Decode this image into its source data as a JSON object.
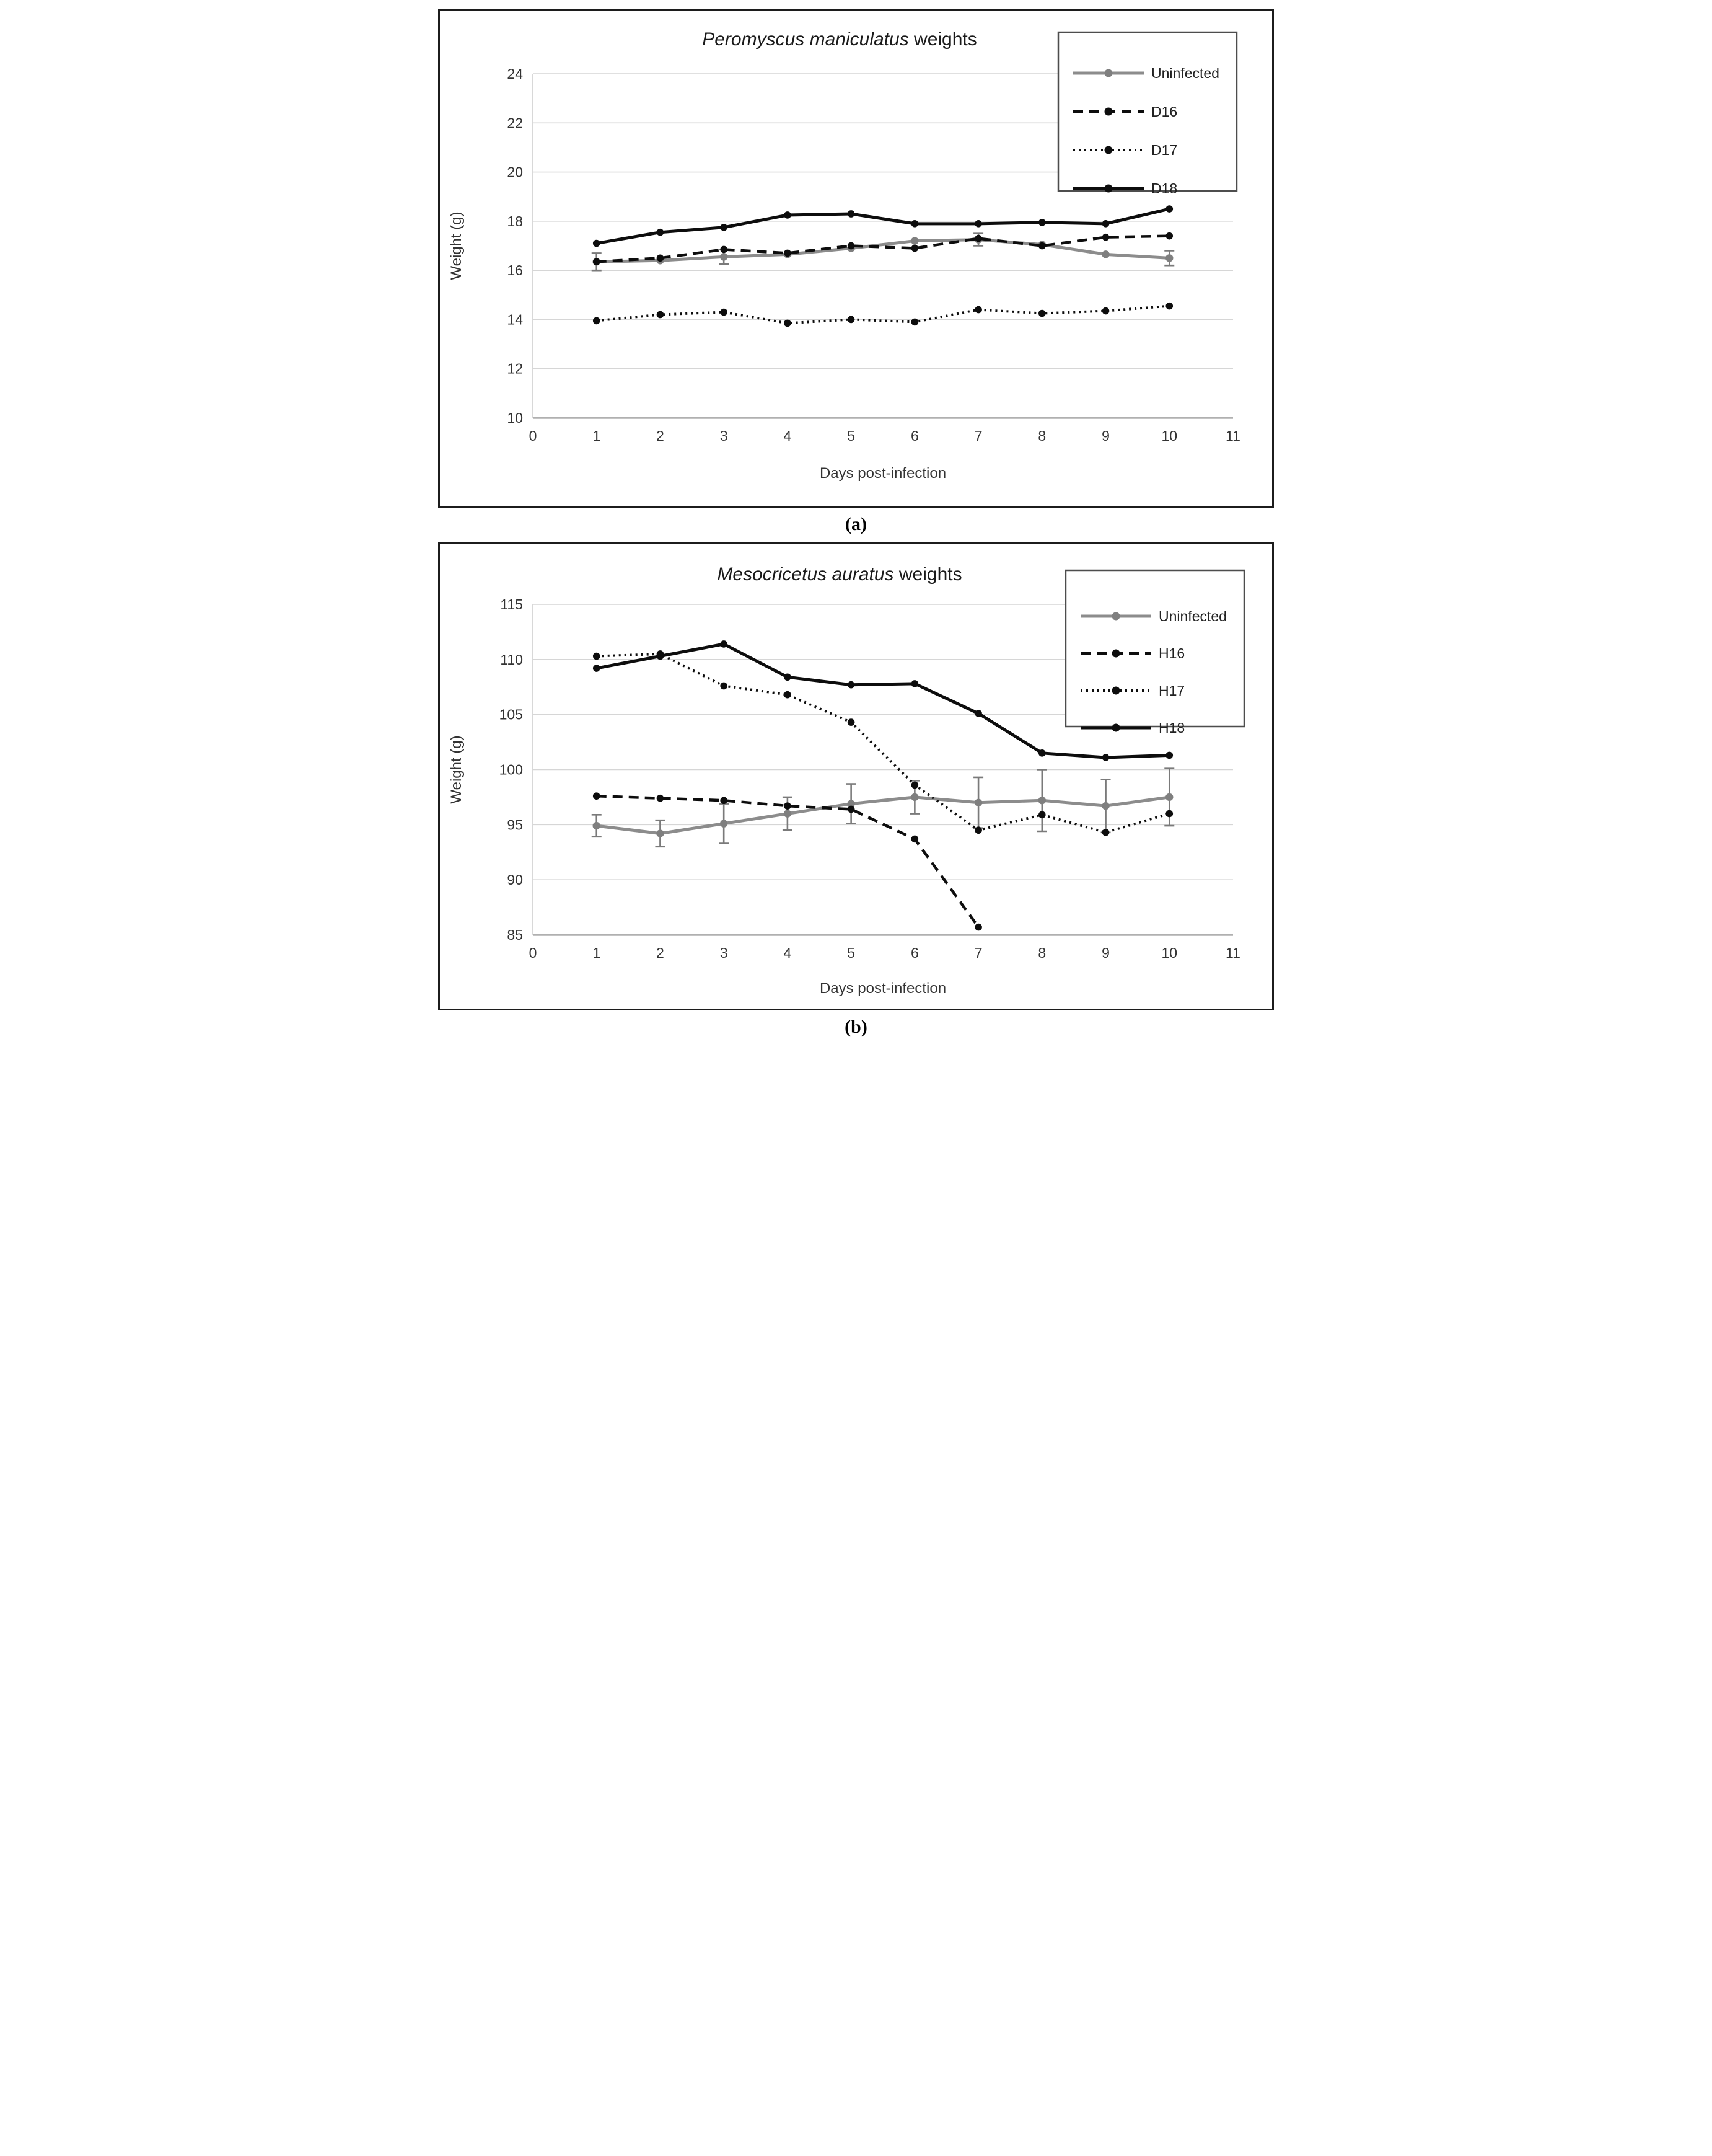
{
  "page": {
    "background": "#ffffff"
  },
  "panel_labels": {
    "a": "(a)",
    "b": "(b)"
  },
  "styles": {
    "grid_color": "#d6d6d6",
    "axis_line_color": "#b0b0b0",
    "plot_border_color": "#cfcfcf",
    "tick_text_color": "#333333",
    "title_color": "#1a1a1a",
    "legend_border_color": "#4d4d4d",
    "legend_text_color": "#222222",
    "black_series_color": "#0d0d0d",
    "gray_series_color": "#8c8c8c",
    "gray_marker_color": "#7f7f7f",
    "error_bar_color": "#7a7a7a"
  },
  "chart_data": [
    {
      "type": "line",
      "title": "Peromyscus maniculatus weights",
      "title_parts": [
        {
          "text": "Peromyscus maniculatus",
          "italic": true
        },
        {
          "text": " weights",
          "italic": false
        }
      ],
      "xlabel": "Days post-infection",
      "ylabel": "Weight (g)",
      "x": [
        1,
        2,
        3,
        4,
        5,
        6,
        7,
        8,
        9,
        10
      ],
      "xlim": [
        0,
        11
      ],
      "ylim": [
        10,
        24
      ],
      "xticks": [
        0,
        1,
        2,
        3,
        4,
        5,
        6,
        7,
        8,
        9,
        10,
        11
      ],
      "yticks": [
        24,
        22,
        20,
        18,
        16,
        14,
        12,
        10
      ],
      "grid": true,
      "legend_position": "top-right",
      "series": [
        {
          "name": "Uninfected",
          "style": "solid",
          "color": "#8c8c8c",
          "marker_color": "#7f7f7f",
          "values": [
            16.35,
            16.4,
            16.55,
            16.65,
            16.9,
            17.2,
            17.25,
            17.05,
            16.65,
            16.5
          ],
          "err": [
            0.35,
            0,
            0.3,
            0,
            0,
            0,
            0.25,
            0,
            0,
            0.3
          ]
        },
        {
          "name": "D16",
          "style": "dashed",
          "color": "#0d0d0d",
          "marker_color": "#0d0d0d",
          "values": [
            16.35,
            16.5,
            16.85,
            16.7,
            17.0,
            16.9,
            17.3,
            17.0,
            17.35,
            17.4
          ]
        },
        {
          "name": "D17",
          "style": "dotted",
          "color": "#0d0d0d",
          "marker_color": "#0d0d0d",
          "values": [
            13.95,
            14.2,
            14.3,
            13.85,
            14.0,
            13.9,
            14.4,
            14.25,
            14.35,
            14.55
          ]
        },
        {
          "name": "D18",
          "style": "solid",
          "color": "#0d0d0d",
          "marker_color": "#0d0d0d",
          "values": [
            17.1,
            17.55,
            17.75,
            18.25,
            18.3,
            17.9,
            17.9,
            17.95,
            17.9,
            18.5
          ]
        }
      ]
    },
    {
      "type": "line",
      "title": "Mesocricetus auratus weights",
      "title_parts": [
        {
          "text": "Mesocricetus auratus",
          "italic": true
        },
        {
          "text": " weights",
          "italic": false
        }
      ],
      "xlabel": "Days post-infection",
      "ylabel": "Weight (g)",
      "x": [
        1,
        2,
        3,
        4,
        5,
        6,
        7,
        8,
        9,
        10
      ],
      "xlim": [
        0,
        11
      ],
      "ylim": [
        85,
        115
      ],
      "xticks": [
        0,
        1,
        2,
        3,
        4,
        5,
        6,
        7,
        8,
        9,
        10,
        11
      ],
      "yticks": [
        115,
        110,
        105,
        100,
        95,
        90,
        85
      ],
      "grid": true,
      "legend_position": "top-right",
      "series": [
        {
          "name": "Uninfected",
          "style": "solid",
          "color": "#8c8c8c",
          "marker_color": "#7f7f7f",
          "values": [
            94.9,
            94.2,
            95.1,
            96.0,
            96.9,
            97.5,
            97.0,
            97.2,
            96.7,
            97.5
          ],
          "err": [
            1.0,
            1.2,
            1.8,
            1.5,
            1.8,
            1.5,
            2.3,
            2.8,
            2.4,
            2.6
          ]
        },
        {
          "name": "H16",
          "style": "dashed",
          "color": "#0d0d0d",
          "marker_color": "#0d0d0d",
          "values": [
            97.6,
            97.4,
            97.2,
            96.7,
            96.4,
            93.7,
            85.7
          ]
        },
        {
          "name": "H17",
          "style": "dotted",
          "color": "#0d0d0d",
          "marker_color": "#0d0d0d",
          "values": [
            110.3,
            110.5,
            107.6,
            106.8,
            104.3,
            98.6,
            94.5,
            95.9,
            94.3,
            96.0
          ]
        },
        {
          "name": "H18",
          "style": "solid",
          "color": "#0d0d0d",
          "marker_color": "#0d0d0d",
          "values": [
            109.2,
            110.3,
            111.4,
            108.4,
            107.7,
            107.8,
            105.1,
            101.5,
            101.1,
            101.3
          ]
        }
      ]
    }
  ]
}
